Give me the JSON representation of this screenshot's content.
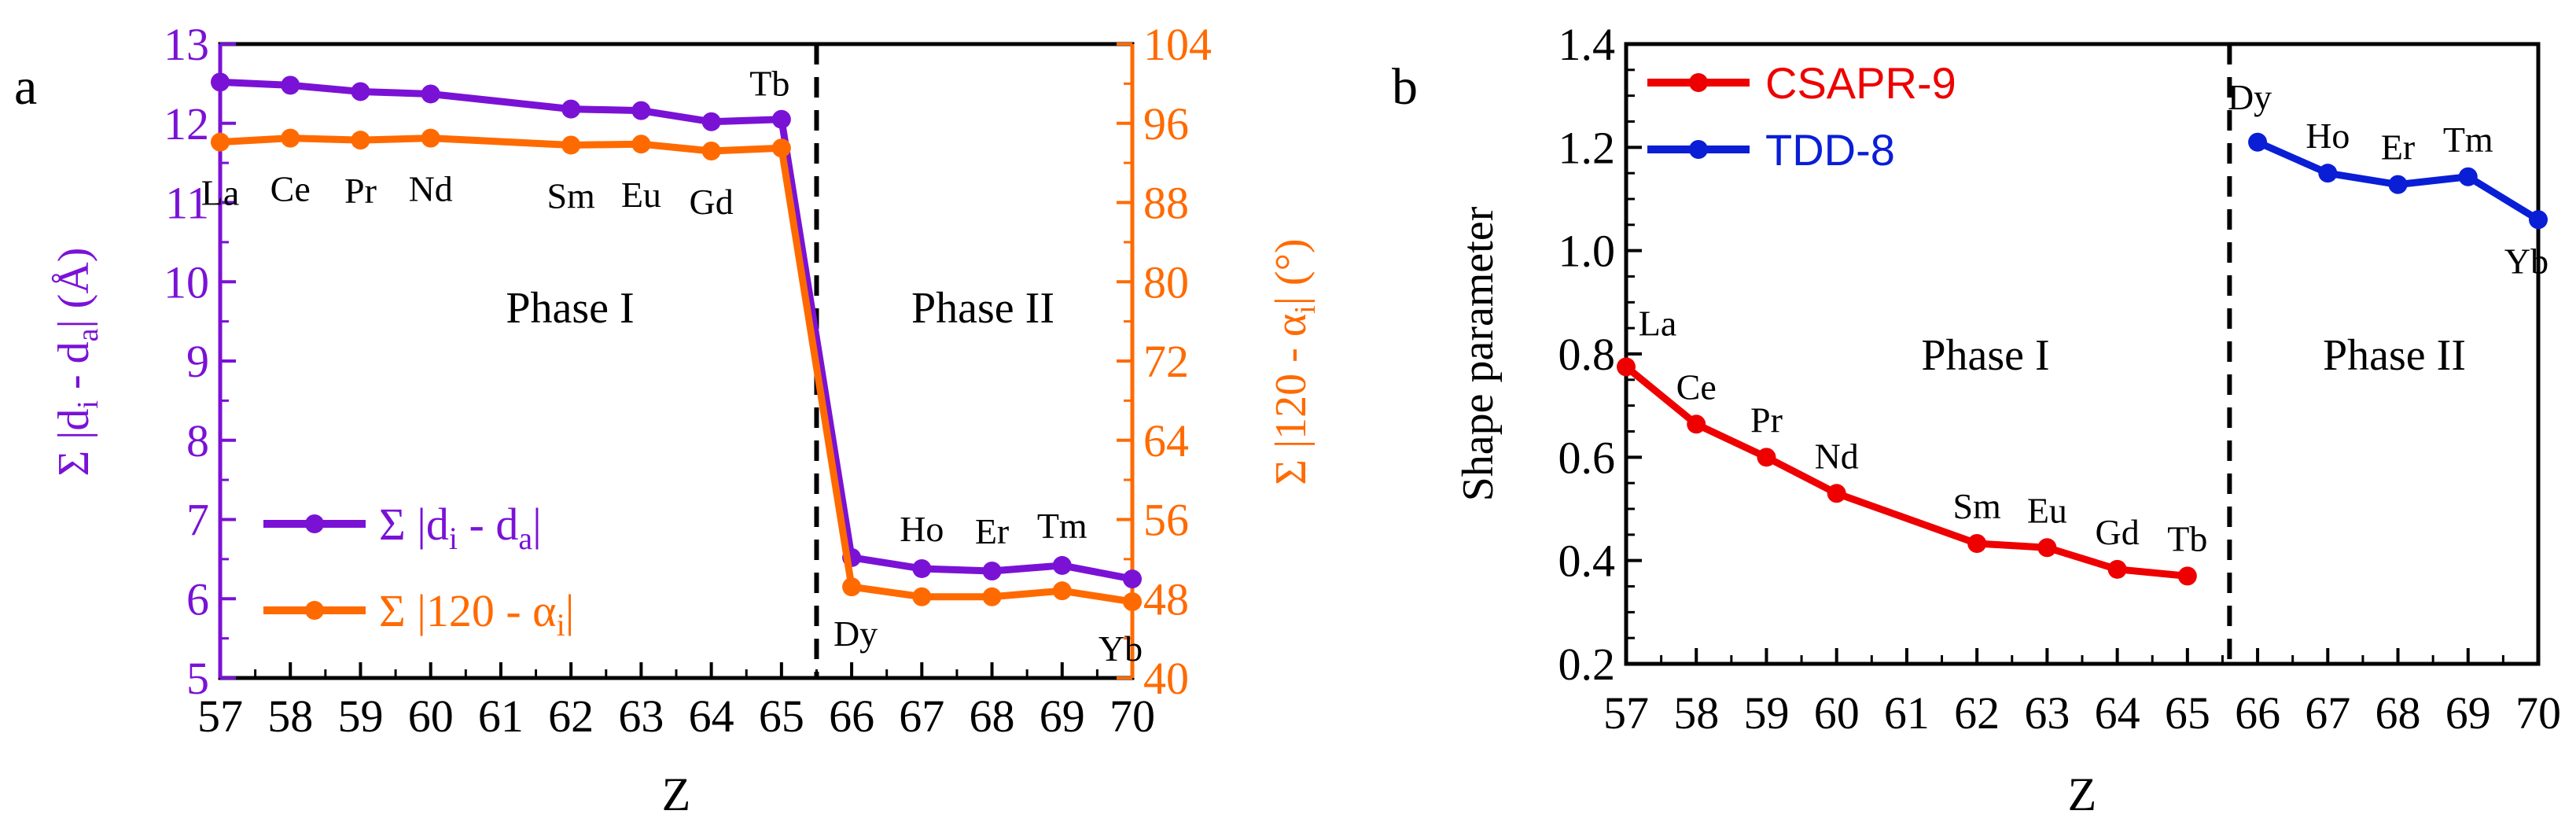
{
  "panel_a": {
    "label": "a",
    "xlabel": "Z",
    "ylabel_left_base": "Σ |d",
    "ylabel_left_sub1": "i",
    "ylabel_left_mid": " - d",
    "ylabel_left_sub2": "a",
    "ylabel_left_end": "| (Å)",
    "ylabel_right_base": "Σ |120 - α",
    "ylabel_right_sub": "i",
    "ylabel_right_end": "| (°)",
    "phase1": "Phase I",
    "phase2": "Phase II",
    "legend1_base": "Σ |d",
    "legend1_sub1": "i",
    "legend1_mid": " - d",
    "legend1_sub2": "a",
    "legend1_end": "|",
    "legend2_base": "Σ |120 - α",
    "legend2_sub": "i",
    "legend2_end": "|"
  },
  "panel_b": {
    "label": "b",
    "xlabel": "Z",
    "ylabel": "Shape parameter",
    "phase1": "Phase I",
    "phase2": "Phase II"
  },
  "colors": {
    "purple": "#7a12d6",
    "orange": "#ff6a00",
    "red": "#ee0000",
    "blue": "#0a1ed6",
    "axis": "#000000"
  },
  "chart_data": [
    {
      "type": "line",
      "title": "",
      "xlabel": "Z",
      "x": [
        57,
        58,
        59,
        60,
        62,
        63,
        64,
        65,
        66,
        67,
        68,
        69,
        70
      ],
      "xticks": [
        "57",
        "58",
        "59",
        "60",
        "61",
        "62",
        "63",
        "64",
        "65",
        "66",
        "67",
        "68",
        "69",
        "70"
      ],
      "x_tick_values": [
        57,
        58,
        59,
        60,
        61,
        62,
        63,
        64,
        65,
        66,
        67,
        68,
        69,
        70
      ],
      "point_labels": [
        "La",
        "Ce",
        "Pr",
        "Nd",
        "Sm",
        "Eu",
        "Gd",
        "Tb",
        "Dy",
        "Ho",
        "Er",
        "Tm",
        "Yb"
      ],
      "phase_boundary": 65.5,
      "ylim_left": [
        5,
        13
      ],
      "yticks_left": [
        "5",
        "6",
        "7",
        "8",
        "9",
        "10",
        "11",
        "12",
        "13"
      ],
      "ylim_right": [
        40,
        104
      ],
      "yticks_right": [
        "40",
        "48",
        "56",
        "64",
        "72",
        "80",
        "88",
        "96",
        "104"
      ],
      "series": [
        {
          "name": "Σ |di - da|",
          "axis": "left",
          "values": [
            12.52,
            12.48,
            12.4,
            12.37,
            12.18,
            12.16,
            12.02,
            12.05,
            6.52,
            6.38,
            6.35,
            6.42,
            6.25
          ]
        },
        {
          "name": "Σ |120 - αi|",
          "axis": "right",
          "values": [
            94.1,
            94.5,
            94.3,
            94.5,
            93.8,
            93.9,
            93.2,
            93.5,
            49.2,
            48.2,
            48.2,
            48.8,
            47.7
          ]
        }
      ]
    },
    {
      "type": "line",
      "title": "",
      "xlabel": "Z",
      "ylabel": "Shape parameter",
      "xticks": [
        "57",
        "58",
        "59",
        "60",
        "61",
        "62",
        "63",
        "64",
        "65",
        "66",
        "67",
        "68",
        "69",
        "70"
      ],
      "x_tick_values": [
        57,
        58,
        59,
        60,
        61,
        62,
        63,
        64,
        65,
        66,
        67,
        68,
        69,
        70
      ],
      "ylim": [
        0.2,
        1.4
      ],
      "yticks": [
        "0.2",
        "0.4",
        "0.6",
        "0.8",
        "1.0",
        "1.2",
        "1.4"
      ],
      "phase_boundary": 65.6,
      "legend": "top-left",
      "series": [
        {
          "name": "CSAPR-9",
          "x": [
            57,
            58,
            59,
            60,
            62,
            63,
            64,
            65
          ],
          "values": [
            0.775,
            0.664,
            0.6,
            0.53,
            0.433,
            0.425,
            0.383,
            0.37
          ],
          "labels": [
            "La",
            "Ce",
            "Pr",
            "Nd",
            "Sm",
            "Eu",
            "Gd",
            "Tb"
          ]
        },
        {
          "name": "TDD-8",
          "x": [
            66,
            67,
            68,
            69,
            70
          ],
          "values": [
            1.21,
            1.15,
            1.128,
            1.143,
            1.06
          ],
          "labels": [
            "Dy",
            "Ho",
            "Er",
            "Tm",
            "Yb"
          ]
        }
      ]
    }
  ]
}
